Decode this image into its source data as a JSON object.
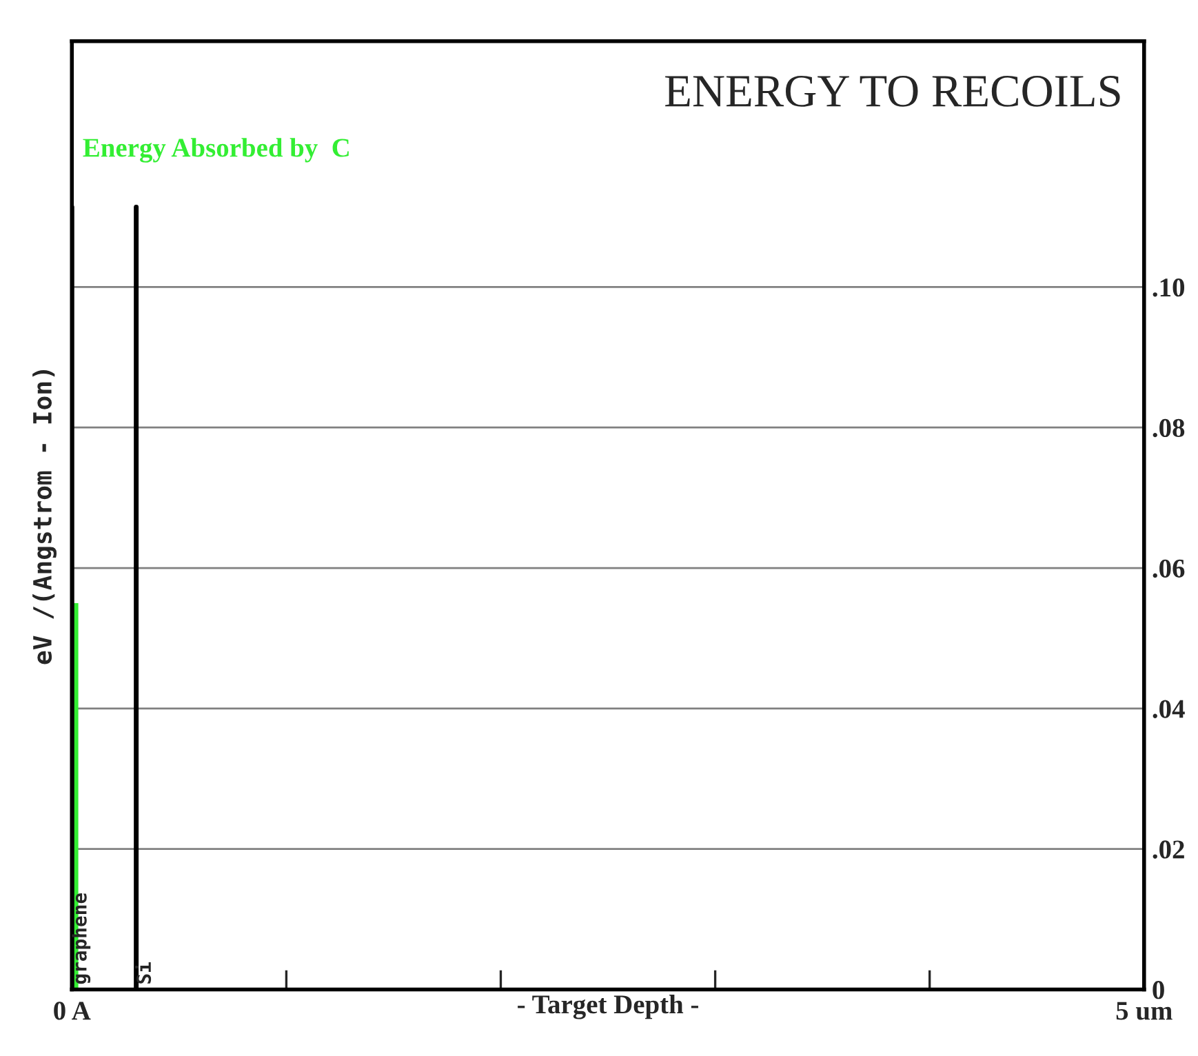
{
  "chart_data": {
    "type": "bar",
    "title": "ENERGY TO RECOILS",
    "xlabel": "- Target Depth -",
    "ylabel": "eV /(Angstrom - Ion)",
    "series": [
      {
        "name": "Energy Absorbed by  C",
        "color": "#33ee33",
        "x": [
          0
        ],
        "values": [
          0.055
        ]
      }
    ],
    "xlim": [
      0,
      5
    ],
    "xticks": [
      {
        "value": 0,
        "label": "0 A"
      },
      {
        "value": 1,
        "label": null
      },
      {
        "value": 2,
        "label": null
      },
      {
        "value": 3,
        "label": null
      },
      {
        "value": 4,
        "label": null
      },
      {
        "value": 5,
        "label": "5 um"
      }
    ],
    "ylim": [
      0,
      0.135
    ],
    "yticks": [
      {
        "value": 0,
        "label": "0"
      },
      {
        "value": 0.02,
        "label": ".02"
      },
      {
        "value": 0.04,
        "label": ".04"
      },
      {
        "value": 0.06,
        "label": ".06"
      },
      {
        "value": 0.08,
        "label": ".08"
      },
      {
        "value": 0.1,
        "label": ".10"
      }
    ],
    "ref_lines": [
      {
        "axis": "x",
        "value": 0,
        "label": "graphene",
        "color": "#000000"
      },
      {
        "axis": "x",
        "value": 0.3,
        "label": "Si",
        "color": "#000000"
      }
    ],
    "grid": "y",
    "legend": false
  }
}
